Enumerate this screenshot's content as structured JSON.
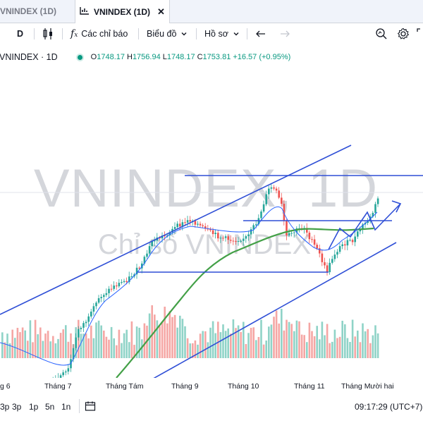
{
  "tabs": [
    {
      "label": "VNINDEX (1D)",
      "active": false
    },
    {
      "label": "VNINDEX (1D)",
      "active": true
    }
  ],
  "toolbar": {
    "interval": "D",
    "indicators_label": "Các chỉ báo",
    "chart_type_label": "Biểu đồ",
    "profile_label": "Hồ sơ"
  },
  "legend": {
    "symbol": "VNINDEX · 1D",
    "open_key": "O",
    "open": "1748.17",
    "high_key": "H",
    "high": "1756.94",
    "low_key": "L",
    "low": "1748.17",
    "close_key": "C",
    "close": "1753.81",
    "change": "+16.57 (+0.95%)"
  },
  "watermark": {
    "main": "VNINDEX, 1D",
    "sub": "Chỉ số VNINDEX"
  },
  "x_axis": [
    "g 6",
    "Tháng 7",
    "Tháng Tám",
    "Tháng 9",
    "Tháng 10",
    "Tháng 11",
    "Tháng Mười hai"
  ],
  "bottom": {
    "ranges": [
      "3p",
      "1p",
      "5n",
      "1n"
    ],
    "time": "09:17:29 (UTC+7)"
  },
  "colors": {
    "up": "#26a69a",
    "down": "#ef5350",
    "ma_fast": "#2962ff",
    "ma_slow": "#43a047",
    "drawings": "#2f4fd6"
  },
  "icons": [
    "candles-icon",
    "fx-icon",
    "chevron-down-icon",
    "undo-icon",
    "redo-icon",
    "search-chart-icon",
    "settings-icon",
    "fullscreen-icon",
    "calendar-icon",
    "close-icon",
    "chart-tab-icon"
  ]
}
